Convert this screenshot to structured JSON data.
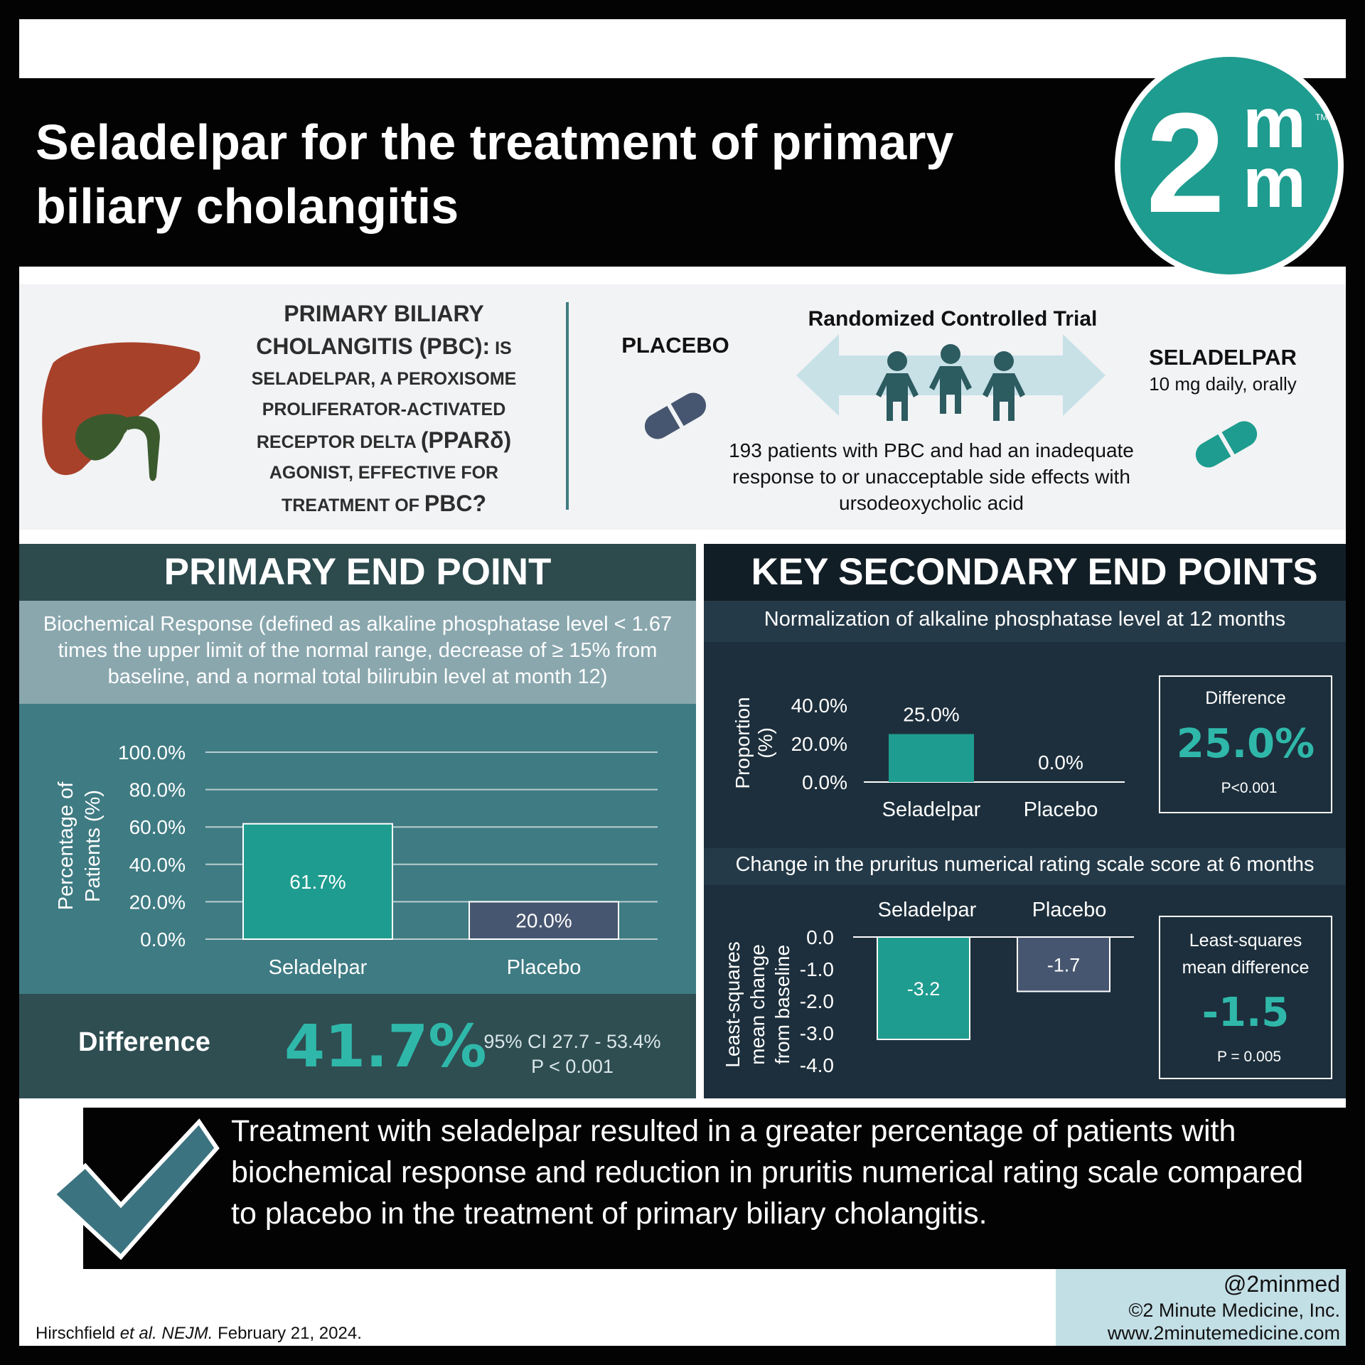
{
  "title": "Seladelpar for the treatment of primary biliary cholangitis",
  "logo": {
    "big": "2",
    "m1": "m",
    "m2": "m",
    "tm": "TM"
  },
  "colors": {
    "teal": "#1e9c8f",
    "navy": "#475670",
    "dark": "#030303",
    "liver": "#a8412a",
    "gallbladder": "#3a5a2e"
  },
  "intro": {
    "question_line1": "PRIMARY BILIARY",
    "question_line2_a": "CHOLANGITIS (PBC):",
    "question_line2_b": "IS",
    "question_line3": "SELADELPAR, A PEROXISOME",
    "question_line4": "PROLIFERATOR-ACTIVATED",
    "question_line5_a": "RECEPTOR DELTA",
    "question_line5_b": "(PPARδ)",
    "question_line6": "AGONIST, EFFECTIVE FOR",
    "question_line7_a": "TREATMENT OF",
    "question_line7_b": "PBC?",
    "placebo_label": "PLACEBO",
    "rct_label": "Randomized Controlled Trial",
    "seladelpar_label": "SELADELPAR",
    "seladelpar_dose": "10 mg daily, orally",
    "patients": "193 patients with PBC and had an inadequate response to or unacceptable side effects with ursodeoxycholic acid",
    "icons": [
      "liver-icon",
      "placebo-pill-icon",
      "people-icon",
      "double-arrow-icon",
      "seladelpar-pill-icon"
    ]
  },
  "primary": {
    "title": "PRIMARY END POINT",
    "description": "Biochemical Response (defined as alkaline phosphatase level < 1.67 times the upper limit of the normal range, decrease of ≥ 15% from baseline, and a normal total bilirubin level at month 12)",
    "difference_label": "Difference",
    "difference_value": "41.7%",
    "ci": "95% CI 27.7 - 53.4%",
    "p": "P < 0.001"
  },
  "secondary": {
    "title": "KEY SECONDARY END POINTS",
    "sub1": "Normalization of alkaline phosphatase level at 12 months",
    "box1_label": "Difference",
    "box1_value": "25.0%",
    "box1_p": "P<0.001",
    "sub2": "Change in the pruritus numerical rating scale score at 6 months",
    "box2_label_1": "Least-squares",
    "box2_label_2": "mean difference",
    "box2_value": "-1.5",
    "box2_p": "P = 0.005"
  },
  "chart_data": [
    {
      "type": "bar",
      "categories": [
        "Seladelpar",
        "Placebo"
      ],
      "values": [
        61.7,
        20.0
      ],
      "value_labels": [
        "61.7%",
        "20.0%"
      ],
      "ylabel": "Percentage of Patients (%)",
      "ylim": [
        0,
        100
      ],
      "ticks": [
        "0.0%",
        "20.0%",
        "40.0%",
        "60.0%",
        "80.0%",
        "100.0%"
      ],
      "grid": true
    },
    {
      "type": "bar",
      "categories": [
        "Seladelpar",
        "Placebo"
      ],
      "values": [
        25.0,
        0.0
      ],
      "value_labels": [
        "25.0%",
        "0.0%"
      ],
      "ylabel": "Proportion (%)",
      "ylim": [
        0,
        40
      ],
      "ticks": [
        "0.0%",
        "20.0%",
        "40.0%"
      ],
      "grid": false
    },
    {
      "type": "bar",
      "categories": [
        "Seladelpar",
        "Placebo"
      ],
      "values": [
        -3.2,
        -1.7
      ],
      "value_labels": [
        "-3.2",
        "-1.7"
      ],
      "ylabel": "Least-squares mean change from baseline",
      "ylim": [
        -4,
        0
      ],
      "ticks": [
        "0.0",
        "-1.0",
        "-2.0",
        "-3.0",
        "-4.0"
      ],
      "grid": false
    }
  ],
  "conclusion": "Treatment with seladelpar resulted in a greater percentage of patients with biochemical response and reduction in pruritis numerical rating scale compared to placebo in the treatment of primary biliary cholangitis.",
  "footer": {
    "citation_authors": "Hirschfield ",
    "citation_etal": "et al. NEJM.",
    "citation_date": " February 21, 2024.",
    "handle": "@2minmed",
    "company": "©2 Minute Medicine, Inc.",
    "website": "www.2minutemedicine.com"
  }
}
